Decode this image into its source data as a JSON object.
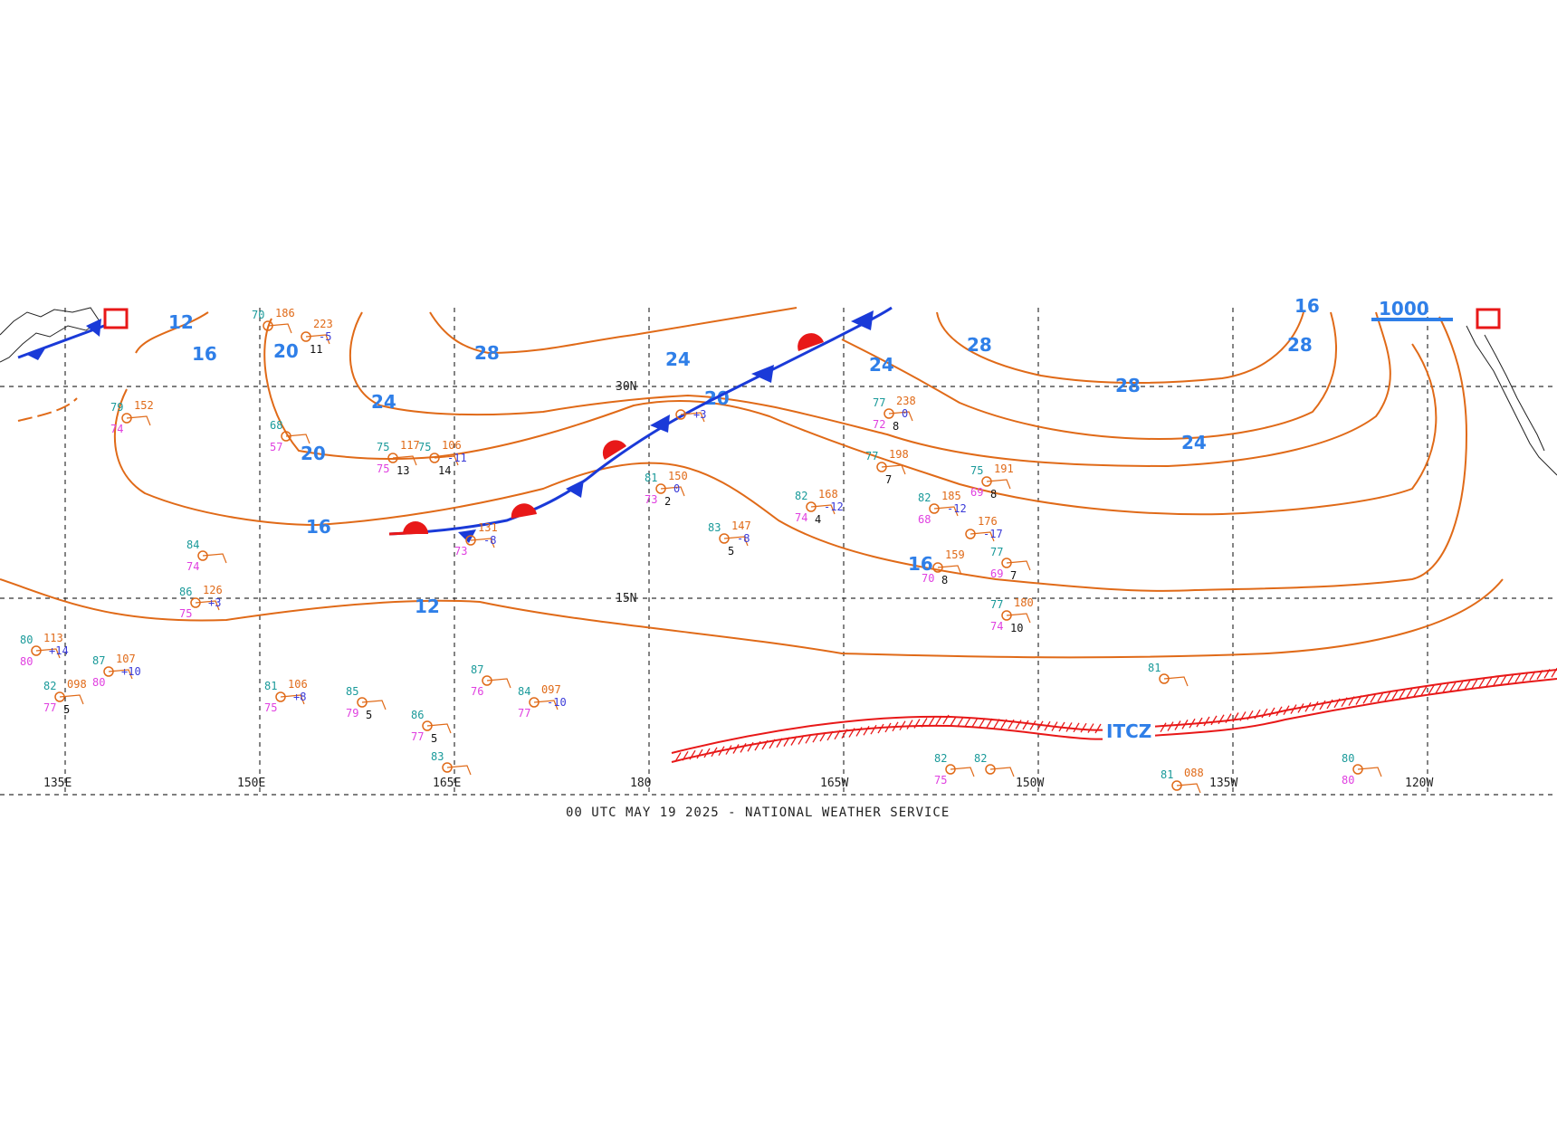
{
  "footer": "00 UTC MAY 19 2025 - NATIONAL WEATHER SERVICE",
  "colors": {
    "isobar": "#e06a18",
    "isobar_label": "#2f7fe8",
    "cold_front": "#1a3ad8",
    "warm_front": "#e81818",
    "itcz": "#e81818",
    "temp": "#1a9a9a",
    "dewpoint": "#e040e0",
    "pressure": "#e06a18",
    "grid": "#333333"
  },
  "longitudes": [
    "135E",
    "150E",
    "165E",
    "180",
    "165W",
    "150W",
    "135W",
    "120W"
  ],
  "latitudes": [
    "30N",
    "15N"
  ],
  "isobar_labels": [
    "12",
    "16",
    "20",
    "24",
    "28",
    "24",
    "20",
    "24",
    "28",
    "28",
    "24",
    "24",
    "28",
    "28",
    "20",
    "16",
    "16",
    "12",
    "16",
    "24",
    "1000"
  ],
  "itcz_label": "ITCZ",
  "stations": [
    {
      "t": "70",
      "p": "186",
      "d": "",
      "c": "",
      "v": ""
    },
    {
      "t": "",
      "p": "223",
      "d": "",
      "c": "-5",
      "v": "11"
    },
    {
      "t": "79",
      "p": "152",
      "d": "74",
      "c": "",
      "v": ""
    },
    {
      "t": "68",
      "p": "",
      "d": "57",
      "c": "",
      "v": ""
    },
    {
      "t": "75",
      "p": "117",
      "d": "75",
      "c": "",
      "v": "13"
    },
    {
      "t": "75",
      "p": "106",
      "d": "",
      "c": "-11",
      "v": "14"
    },
    {
      "t": "",
      "p": "131",
      "d": "73",
      "c": "-8",
      "v": ""
    },
    {
      "t": "",
      "p": "",
      "d": "",
      "c": "+3",
      "v": ""
    },
    {
      "t": "81",
      "p": "150",
      "d": "73",
      "c": "0",
      "v": "2"
    },
    {
      "t": "83",
      "p": "147",
      "d": "",
      "c": "-8",
      "v": "5"
    },
    {
      "t": "82",
      "p": "168",
      "d": "74",
      "c": "-12",
      "v": "4"
    },
    {
      "t": "77",
      "p": "238",
      "d": "72",
      "c": "0",
      "v": "8"
    },
    {
      "t": "77",
      "p": "198",
      "d": "",
      "c": "",
      "v": "7"
    },
    {
      "t": "82",
      "p": "185",
      "d": "68",
      "c": "-12",
      "v": ""
    },
    {
      "t": "75",
      "p": "191",
      "d": "69",
      "c": "",
      "v": "8"
    },
    {
      "t": "",
      "p": "176",
      "d": "",
      "c": "-17",
      "v": ""
    },
    {
      "t": "77",
      "p": "",
      "d": "69",
      "c": "",
      "v": "7"
    },
    {
      "t": "",
      "p": "159",
      "d": "70",
      "c": "",
      "v": "8"
    },
    {
      "t": "77",
      "p": "180",
      "d": "74",
      "c": "",
      "v": "10"
    },
    {
      "t": "84",
      "p": "",
      "d": "74",
      "c": "",
      "v": ""
    },
    {
      "t": "86",
      "p": "126",
      "d": "75",
      "c": "+3",
      "v": ""
    },
    {
      "t": "80",
      "p": "113",
      "d": "80",
      "c": "+14",
      "v": ""
    },
    {
      "t": "87",
      "p": "107",
      "d": "80",
      "c": "+10",
      "v": ""
    },
    {
      "t": "82",
      "p": "098",
      "d": "77",
      "c": "",
      "v": "5"
    },
    {
      "t": "81",
      "p": "106",
      "d": "75",
      "c": "+8",
      "v": ""
    },
    {
      "t": "85",
      "p": "",
      "d": "79",
      "c": "",
      "v": "5"
    },
    {
      "t": "87",
      "p": "",
      "d": "76",
      "c": "",
      "v": ""
    },
    {
      "t": "84",
      "p": "097",
      "d": "77",
      "c": "-10",
      "v": ""
    },
    {
      "t": "86",
      "p": "",
      "d": "77",
      "c": "",
      "v": "5"
    },
    {
      "t": "83",
      "p": "",
      "d": "",
      "c": "",
      "v": ""
    },
    {
      "t": "82",
      "p": "",
      "d": "75",
      "c": "",
      "v": ""
    },
    {
      "t": "82",
      "p": "",
      "d": "",
      "c": "",
      "v": ""
    },
    {
      "t": "81",
      "p": "",
      "d": "",
      "c": "",
      "v": ""
    },
    {
      "t": "81",
      "p": "088",
      "d": "",
      "c": "",
      "v": ""
    },
    {
      "t": "80",
      "p": "",
      "d": "80",
      "c": "",
      "v": ""
    }
  ]
}
